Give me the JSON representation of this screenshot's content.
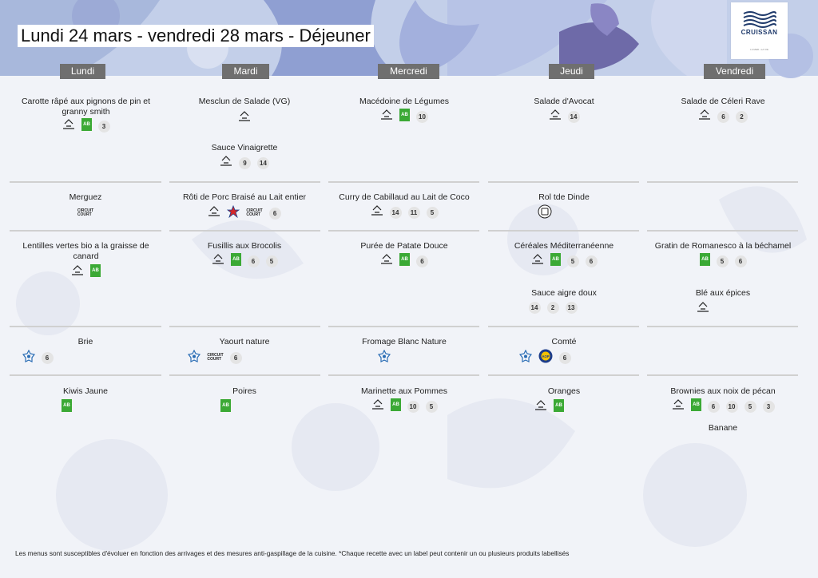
{
  "title": "Lundi 24 mars - vendredi 28 mars  - Déjeuner",
  "logo": {
    "wordmark": "CRUISSAN",
    "tagline": "LA MER • LA VIE"
  },
  "days": [
    "Lundi",
    "Mardi",
    "Mercredi",
    "Jeudi",
    "Vendredi"
  ],
  "colors": {
    "header_bg": "#6f6f6f",
    "bg_shape_blue": "#a8b8dc",
    "bg_shape_violet": "#8a86c4",
    "bio_green": "#3ba935"
  },
  "dishes": {
    "lundi_entree": "Carotte râpé aux pignons de pin et granny smith",
    "mardi_entree": "Mesclun de Salade (VG)",
    "mardi_sauce": "Sauce Vinaigrette",
    "mercredi_entree": "Macédoine de Légumes",
    "jeudi_entree": "Salade d'Avocat",
    "vendredi_entree": "Salade de Céleri Rave",
    "lundi_plat": "Merguez",
    "mardi_plat": "Rôti de Porc Braisé au Lait entier",
    "mercredi_plat": "Curry de Cabillaud au Lait de Coco",
    "jeudi_plat": "Rol  tde Dinde",
    "lundi_accomp": "Lentilles vertes bio a la graisse de canard",
    "mardi_accomp": "Fusillis aux Brocolis",
    "mercredi_accomp": "Purée de Patate Douce",
    "jeudi_accomp": "Céréales Méditerranéenne",
    "jeudi_sauce": "Sauce aigre doux",
    "vendredi_accomp": "Gratin de Romanesco à la béchamel",
    "vendredi_accomp2": "Blé aux épices",
    "lundi_fromage": "Brie",
    "mardi_fromage": "Yaourt nature",
    "mercredi_fromage": "Fromage Blanc Nature",
    "jeudi_fromage": "Comté",
    "lundi_dessert": "Kiwis Jaune",
    "mardi_dessert": "Poires",
    "mercredi_dessert": "Marinette aux Pommes",
    "jeudi_dessert": "Oranges",
    "vendredi_dessert": "Brownies aux noix de pécan",
    "vendredi_dessert2": "Banane"
  },
  "labels": {
    "circuit_court_line1": "CIRCUIT",
    "circuit_court_line2": "COURT",
    "bio_text": "AB",
    "aop_text": "AOP"
  },
  "allergens": {
    "lundi_entree": [
      "3"
    ],
    "mardi_sauce": [
      "9",
      "14"
    ],
    "mercredi_entree": [
      "10"
    ],
    "jeudi_entree": [
      "14"
    ],
    "vendredi_entree": [
      "6",
      "2"
    ],
    "mardi_plat": [
      "6"
    ],
    "mercredi_plat": [
      "14",
      "11",
      "5"
    ],
    "mardi_accomp": [
      "6",
      "5"
    ],
    "mercredi_accomp": [
      "6"
    ],
    "jeudi_accomp": [
      "5",
      "6"
    ],
    "jeudi_sauce": [
      "14",
      "2",
      "13"
    ],
    "vendredi_accomp": [
      "5",
      "6"
    ],
    "lundi_fromage": [
      "6"
    ],
    "mardi_fromage": [
      "6"
    ],
    "jeudi_fromage": [
      "6"
    ],
    "mercredi_dessert": [
      "10",
      "5"
    ],
    "vendredi_dessert": [
      "6",
      "10",
      "5",
      "3"
    ]
  },
  "footer": "Les menus sont susceptibles d'évoluer en fonction des arrivages et des mesures anti-gaspillage de la cuisine. *Chaque recette avec un label peut contenir un ou plusieurs produits labellisés"
}
